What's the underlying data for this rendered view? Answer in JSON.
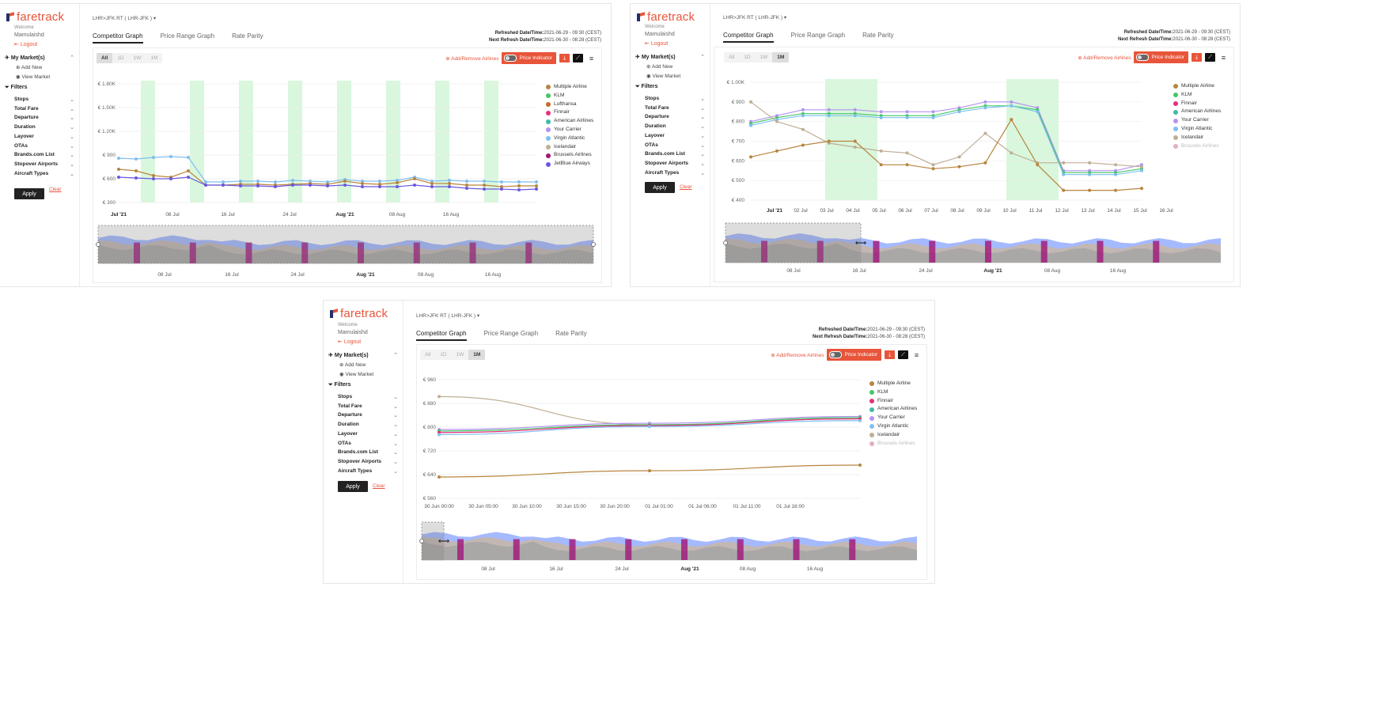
{
  "brand": {
    "name": "faretrack"
  },
  "user": {
    "welcome": "Welcome",
    "name": "Mamulaishd",
    "logout": "Logout"
  },
  "sidebar": {
    "my_markets": "My Market(s)",
    "add_new": "Add New",
    "view_market": "View Market",
    "filters_title": "Filters",
    "filters": [
      "Stops",
      "Total Fare",
      "Departure",
      "Duration",
      "Layover",
      "OTAs",
      "Brands.com List",
      "Stopover Airports",
      "Aircraft Types"
    ],
    "apply": "Apply",
    "clear": "Clear"
  },
  "route_label": "LHR>JFK RT ( LHR-JFK )",
  "tabs": [
    "Competitor Graph",
    "Price Range Graph",
    "Rate Parity"
  ],
  "refreshed_label": "Refreshed Date/Time:",
  "refreshed_value": "2021-06-29 - 09:30 (CEST)",
  "next_refresh_label": "Next Refresh Date/Time:",
  "next_refresh_value": "2021-06-30 - 08:28 (CEST)",
  "range_buttons": [
    "All",
    "1D",
    "1W",
    "1M"
  ],
  "toolbar": {
    "add_remove": "Add/Remove Airlines",
    "price_indicator": "Price Indicator"
  },
  "colors": {
    "accent": "#e8553a",
    "highlight": "#d8f7dc"
  },
  "panels": [
    {
      "selected_range": "All",
      "legend": [
        {
          "name": "Multiple Airline",
          "color": "#b8843f"
        },
        {
          "name": "KLM",
          "color": "#44c767"
        },
        {
          "name": "Lufthansa",
          "color": "#c56a2a"
        },
        {
          "name": "Finnair",
          "color": "#e5307a"
        },
        {
          "name": "American Airlines",
          "color": "#3fb9a8"
        },
        {
          "name": "Your Carrier",
          "color": "#b693f0"
        },
        {
          "name": "Virgin Atlantic",
          "color": "#7fbff0"
        },
        {
          "name": "Icelandair",
          "color": "#bfae95"
        },
        {
          "name": "Brussels Airlines",
          "color": "#a0157a"
        },
        {
          "name": "JetBlue Airways",
          "color": "#6a57e0"
        }
      ],
      "chart_data": {
        "type": "line",
        "y_ticks": [
          "€ 1.80K",
          "€ 1.50K",
          "€ 1.20K",
          "€ 900",
          "€ 600",
          "€ 300"
        ],
        "ylim": [
          300,
          1800
        ],
        "x_ticks": [
          "Jul '21",
          "08 Jul",
          "16 Jul",
          "24 Jul",
          "Aug '21",
          "08 Aug",
          "16 Aug"
        ],
        "series": [
          {
            "name": "Virgin Atlantic",
            "values": [
              860,
              850,
              870,
              880,
              870,
              560,
              560,
              570,
              570,
              560,
              580,
              570,
              560,
              590,
              570,
              570,
              580,
              620,
              570,
              580,
              570,
              570,
              560,
              560,
              560
            ]
          },
          {
            "name": "Multiple Airline",
            "values": [
              720,
              700,
              640,
              620,
              700,
              520,
              520,
              530,
              530,
              520,
              530,
              540,
              530,
              570,
              540,
              530,
              550,
              600,
              540,
              540,
              520,
              520,
              500,
              510,
              510
            ]
          },
          {
            "name": "JetBlue Airways",
            "values": [
              620,
              610,
              600,
              600,
              620,
              520,
              520,
              510,
              510,
              500,
              520,
              520,
              510,
              520,
              500,
              500,
              500,
              520,
              500,
              500,
              480,
              470,
              470,
              460,
              470
            ]
          }
        ],
        "navigator_ticks": [
          "08 Jul",
          "16 Jul",
          "24 Jul",
          "Aug '21",
          "08 Aug",
          "16 Aug"
        ]
      }
    },
    {
      "selected_range": "1M",
      "legend": [
        {
          "name": "Multiple Airline",
          "color": "#b8843f"
        },
        {
          "name": "KLM",
          "color": "#44c767"
        },
        {
          "name": "Finnair",
          "color": "#e5307a"
        },
        {
          "name": "American Airlines",
          "color": "#3fb9a8"
        },
        {
          "name": "Your Carrier",
          "color": "#b693f0"
        },
        {
          "name": "Virgin Atlantic",
          "color": "#7fbff0"
        },
        {
          "name": "Icelandair",
          "color": "#bfae95"
        },
        {
          "name": "Brussels Airlines",
          "color": "#e0b0c0",
          "faded": true
        }
      ],
      "chart_data": {
        "type": "line",
        "y_ticks": [
          "€ 1.00K",
          "€ 900",
          "€ 800",
          "€ 700",
          "€ 600",
          "€ 500",
          "€ 400"
        ],
        "ylim": [
          400,
          1000
        ],
        "x_ticks": [
          "Jul '21",
          "02 Jul",
          "03 Jul",
          "04 Jul",
          "05 Jul",
          "06 Jul",
          "07 Jul",
          "08 Jul",
          "09 Jul",
          "10 Jul",
          "11 Jul",
          "12 Jul",
          "13 Jul",
          "14 Jul",
          "15 Jul",
          "16 Jul"
        ],
        "series": [
          {
            "name": "Your Carrier",
            "values": [
              800,
              830,
              860,
              860,
              860,
              850,
              850,
              850,
              870,
              900,
              900,
              870,
              550,
              550,
              550,
              580
            ]
          },
          {
            "name": "KLM",
            "values": [
              790,
              820,
              840,
              840,
              840,
              830,
              830,
              830,
              860,
              880,
              880,
              860,
              540,
              540,
              540,
              560
            ]
          },
          {
            "name": "Virgin Atlantic",
            "values": [
              780,
              810,
              830,
              830,
              830,
              820,
              820,
              820,
              850,
              870,
              880,
              850,
              530,
              530,
              530,
              550
            ]
          },
          {
            "name": "Icelandair",
            "values": [
              900,
              800,
              760,
              690,
              670,
              650,
              640,
              580,
              620,
              740,
              640,
              590,
              590,
              590,
              580,
              570
            ]
          },
          {
            "name": "Multiple Airline",
            "values": [
              620,
              650,
              680,
              700,
              700,
              580,
              580,
              560,
              570,
              590,
              810,
              580,
              450,
              450,
              450,
              460
            ]
          }
        ],
        "navigator_ticks": [
          "08 Jul",
          "16 Jul",
          "24 Jul",
          "Aug '21",
          "08 Aug",
          "16 Aug"
        ]
      }
    },
    {
      "selected_range": "1M",
      "legend": [
        {
          "name": "Multiple Airline",
          "color": "#b8843f"
        },
        {
          "name": "KLM",
          "color": "#44c767"
        },
        {
          "name": "Finnair",
          "color": "#e5307a"
        },
        {
          "name": "American Airlines",
          "color": "#3fb9a8"
        },
        {
          "name": "Your Carrier",
          "color": "#b693f0"
        },
        {
          "name": "Virgin Atlantic",
          "color": "#7fbff0"
        },
        {
          "name": "Icelandair",
          "color": "#bfae95"
        },
        {
          "name": "Brussels Airlines",
          "color": "#e0b0c0",
          "faded": true
        }
      ],
      "chart_data": {
        "type": "line",
        "y_ticks": [
          "€ 960",
          "€ 880",
          "€ 800",
          "€ 720",
          "€ 640",
          "€ 560"
        ],
        "ylim": [
          560,
          960
        ],
        "x_ticks": [
          "30 Jun 00:00",
          "30 Jun 05:00",
          "30 Jun 10:00",
          "30 Jun 15:00",
          "30 Jun 20:00",
          "01 Jul 01:00",
          "01 Jul 06:00",
          "01 Jul 11:00",
          "01 Jul 16:00"
        ],
        "series": [
          {
            "name": "Icelandair",
            "values": [
              903,
              808,
              828
            ]
          },
          {
            "name": "Your Carrier",
            "values": [
              792,
              813,
              836
            ]
          },
          {
            "name": "KLM",
            "values": [
              787,
              808,
              832
            ]
          },
          {
            "name": "Finnair",
            "values": [
              782,
              805,
              828
            ]
          },
          {
            "name": "Virgin Atlantic",
            "values": [
              775,
              802,
              822
            ]
          },
          {
            "name": "Multiple Airline",
            "values": [
              632,
              653,
              672
            ]
          }
        ],
        "navigator_ticks": [
          "08 Jul",
          "16 Jul",
          "24 Jul",
          "Aug '21",
          "08 Aug",
          "16 Aug"
        ]
      }
    }
  ]
}
